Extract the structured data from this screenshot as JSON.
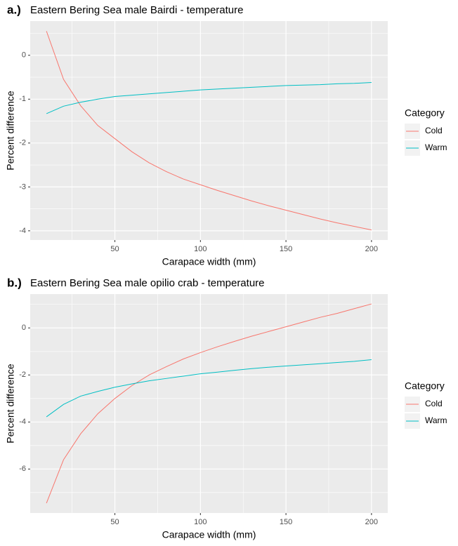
{
  "chart_data": [
    {
      "type": "line",
      "tag": "a.)",
      "title": "Eastern Bering Sea male Bairdi - temperature",
      "x_label": "Carapace width (mm)",
      "y_label": "Percent difference",
      "legend_title": "Category",
      "x": [
        10,
        20,
        30,
        40,
        50,
        60,
        70,
        80,
        90,
        100,
        110,
        120,
        130,
        140,
        150,
        160,
        170,
        180,
        190,
        200
      ],
      "series": [
        {
          "name": "Cold",
          "color": "#F8766D",
          "values": [
            0.55,
            -0.55,
            -1.15,
            -1.6,
            -1.9,
            -2.2,
            -2.45,
            -2.65,
            -2.82,
            -2.95,
            -3.08,
            -3.2,
            -3.32,
            -3.43,
            -3.53,
            -3.63,
            -3.73,
            -3.82,
            -3.9,
            -3.98
          ]
        },
        {
          "name": "Warm",
          "color": "#00BFC4",
          "values": [
            -1.33,
            -1.16,
            -1.07,
            -1.0,
            -0.94,
            -0.91,
            -0.88,
            -0.85,
            -0.82,
            -0.79,
            -0.77,
            -0.75,
            -0.73,
            -0.71,
            -0.69,
            -0.68,
            -0.67,
            -0.65,
            -0.64,
            -0.62
          ]
        }
      ],
      "xlim": [
        0.5,
        209.5
      ],
      "xticks": [
        50,
        100,
        150,
        200
      ],
      "ylim": [
        -4.21,
        0.78
      ],
      "yticks": [
        -4,
        -3,
        -2,
        -1,
        0
      ],
      "grid": true,
      "minor_grid": true,
      "legend": "right"
    },
    {
      "type": "line",
      "tag": "b.)",
      "title": "Eastern Bering Sea male opilio crab - temperature",
      "x_label": "Carapace width (mm)",
      "y_label": "Percent difference",
      "legend_title": "Category",
      "x": [
        10,
        20,
        30,
        40,
        50,
        60,
        70,
        80,
        90,
        100,
        110,
        120,
        130,
        140,
        150,
        160,
        170,
        180,
        190,
        200
      ],
      "series": [
        {
          "name": "Cold",
          "color": "#F8766D",
          "values": [
            -7.45,
            -5.6,
            -4.5,
            -3.65,
            -3.0,
            -2.45,
            -2.0,
            -1.65,
            -1.32,
            -1.05,
            -0.8,
            -0.57,
            -0.35,
            -0.15,
            0.05,
            0.25,
            0.45,
            0.62,
            0.82,
            1.02
          ]
        },
        {
          "name": "Warm",
          "color": "#00BFC4",
          "values": [
            -3.78,
            -3.25,
            -2.9,
            -2.7,
            -2.52,
            -2.38,
            -2.25,
            -2.15,
            -2.05,
            -1.95,
            -1.88,
            -1.8,
            -1.73,
            -1.67,
            -1.62,
            -1.57,
            -1.52,
            -1.47,
            -1.42,
            -1.35
          ]
        }
      ],
      "xlim": [
        0.5,
        209.5
      ],
      "xticks": [
        50,
        100,
        150,
        200
      ],
      "ylim": [
        -7.87,
        1.44
      ],
      "yticks": [
        -6,
        -4,
        -2,
        0
      ],
      "grid": true,
      "minor_grid": true,
      "legend": "right"
    }
  ]
}
